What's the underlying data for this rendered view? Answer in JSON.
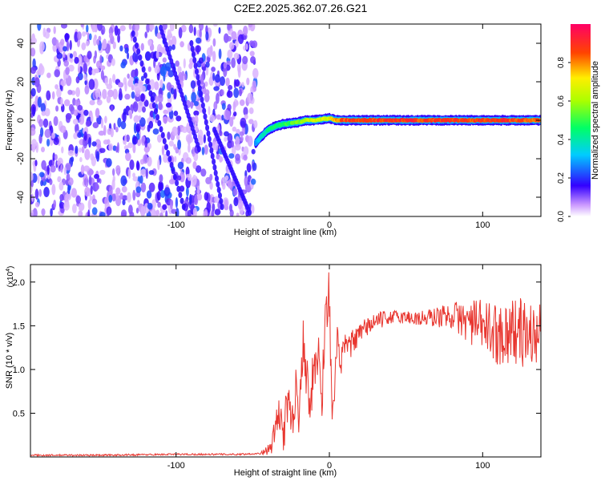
{
  "title": "C2E2.2025.362.07.26.G21",
  "colors": {
    "snr_line": "#e8362f",
    "frame": "#000000",
    "background": "#ffffff"
  },
  "chart_data": [
    {
      "type": "heatmap",
      "title": "C2E2.2025.362.07.26.G21",
      "xlabel": "Height of straight line (km)",
      "ylabel": "Frequency (Hz)",
      "xlim": [
        -195,
        138
      ],
      "ylim": [
        -50,
        50
      ],
      "x_ticks": [
        {
          "value": -100,
          "label": "-100"
        },
        {
          "value": 0,
          "label": "0"
        },
        {
          "value": 100,
          "label": "100"
        }
      ],
      "y_ticks": [
        {
          "value": -40,
          "label": "-40"
        },
        {
          "value": -20,
          "label": "-20"
        },
        {
          "value": 0,
          "label": "0"
        },
        {
          "value": 20,
          "label": "20"
        },
        {
          "value": 40,
          "label": "40"
        }
      ],
      "noise_region_x": [
        -195,
        -48
      ],
      "trace": {
        "x": [
          -48,
          -45,
          -40,
          -35,
          -30,
          -25,
          -20,
          -15,
          -10,
          -5,
          0,
          5,
          10,
          20,
          40,
          60,
          80,
          100,
          120,
          138
        ],
        "freq": [
          -12,
          -9,
          -5,
          -3,
          -2,
          -1.5,
          -1,
          0,
          0,
          0.5,
          1,
          0,
          0,
          0,
          0,
          0,
          0,
          0,
          0,
          0
        ],
        "amplitude": [
          0.3,
          0.4,
          0.45,
          0.5,
          0.5,
          0.55,
          0.6,
          0.65,
          0.7,
          0.7,
          0.75,
          0.85,
          0.92,
          0.95,
          0.95,
          0.95,
          0.95,
          0.95,
          0.95,
          0.9
        ]
      },
      "colorbar": {
        "label": "Normalized spectral amplitude",
        "range": [
          0,
          1
        ],
        "ticks": [
          {
            "value": 0.0,
            "label": "0.0"
          },
          {
            "value": 0.2,
            "label": "0.2"
          },
          {
            "value": 0.4,
            "label": "0.4"
          },
          {
            "value": 0.6,
            "label": "0.6"
          },
          {
            "value": 0.8,
            "label": "0.8"
          }
        ]
      }
    },
    {
      "type": "line",
      "xlabel": "Height of straight line (km)",
      "ylabel": "SNR (10 * v/v)",
      "y_multiplier": "(x10",
      "y_multiplier_exp": "4",
      "xlim": [
        -195,
        138
      ],
      "ylim": [
        0,
        2.2
      ],
      "x_ticks": [
        {
          "value": -100,
          "label": "-100"
        },
        {
          "value": 0,
          "label": "0"
        },
        {
          "value": 100,
          "label": "100"
        }
      ],
      "y_ticks": [
        {
          "value": 0.5,
          "label": "0.5"
        },
        {
          "value": 1.0,
          "label": "1.0"
        },
        {
          "value": 1.5,
          "label": "1.5"
        },
        {
          "value": 2.0,
          "label": "2.0"
        }
      ],
      "series": [
        {
          "x": [
            -195,
            -150,
            -100,
            -60,
            -45,
            -38,
            -33,
            -30,
            -27,
            -24,
            -22,
            -20,
            -17,
            -15,
            -12,
            -10,
            -7,
            -5,
            -3,
            0,
            2,
            5,
            8,
            10,
            15,
            20,
            25,
            30,
            40,
            50,
            60,
            70,
            80,
            90,
            100,
            110,
            120,
            130,
            138
          ],
          "y": [
            0.02,
            0.02,
            0.03,
            0.03,
            0.04,
            0.1,
            0.5,
            0.3,
            0.6,
            0.4,
            0.8,
            0.5,
            1.4,
            0.9,
            0.7,
            1.0,
            1.2,
            0.6,
            1.5,
            1.9,
            0.3,
            1.3,
            1.1,
            1.25,
            1.3,
            1.4,
            1.5,
            1.55,
            1.6,
            1.6,
            1.58,
            1.6,
            1.62,
            1.55,
            1.5,
            1.4,
            1.45,
            1.4,
            1.4
          ],
          "noise": [
            0.01,
            0.01,
            0.01,
            0.01,
            0.01,
            0.08,
            0.25,
            0.25,
            0.25,
            0.25,
            0.25,
            0.25,
            0.3,
            0.3,
            0.3,
            0.3,
            0.3,
            0.3,
            0.3,
            0.3,
            0.25,
            0.2,
            0.2,
            0.15,
            0.15,
            0.12,
            0.12,
            0.1,
            0.08,
            0.08,
            0.1,
            0.12,
            0.15,
            0.25,
            0.3,
            0.35,
            0.4,
            0.4,
            0.35
          ]
        }
      ]
    }
  ]
}
